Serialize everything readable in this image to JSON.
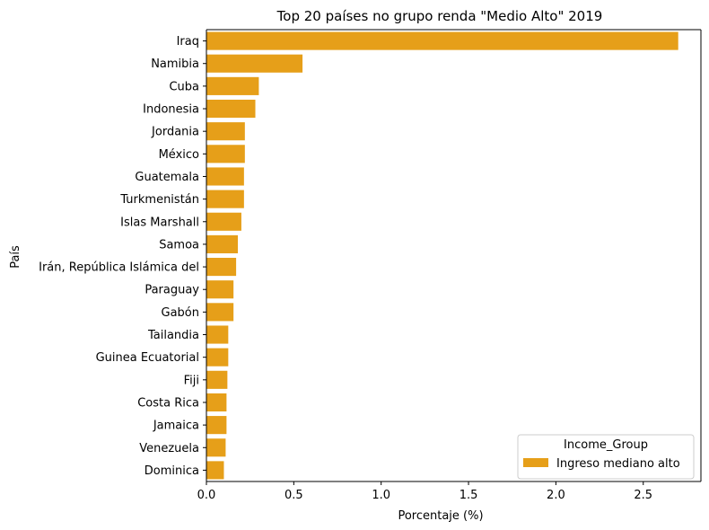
{
  "chart_data": {
    "type": "bar",
    "orientation": "horizontal",
    "title": "Top 20 países no grupo renda \"Medio Alto\" 2019",
    "xlabel": "Porcentaje (%)",
    "ylabel": "País",
    "xlim": [
      0,
      2.83
    ],
    "xticks": [
      "0.0",
      "0.5",
      "1.0",
      "1.5",
      "2.0",
      "2.5"
    ],
    "grid": false,
    "categories": [
      "Iraq",
      "Namibia",
      "Cuba",
      "Indonesia",
      "Jordania",
      "México",
      "Guatemala",
      "Turkmenistán",
      "Islas Marshall",
      "Samoa",
      "Irán, República Islámica del",
      "Paraguay",
      "Gabón",
      "Tailandia",
      "Guinea Ecuatorial",
      "Fiji",
      "Costa Rica",
      "Jamaica",
      "Venezuela",
      "Dominica"
    ],
    "series": [
      {
        "name": "Ingreso mediano alto",
        "color": "#e69f19",
        "values": [
          2.7,
          0.55,
          0.3,
          0.28,
          0.22,
          0.22,
          0.215,
          0.215,
          0.2,
          0.18,
          0.17,
          0.155,
          0.155,
          0.125,
          0.125,
          0.12,
          0.115,
          0.115,
          0.11,
          0.1
        ]
      }
    ],
    "legend": {
      "title": "Income_Group",
      "position": "bottom-right"
    }
  }
}
